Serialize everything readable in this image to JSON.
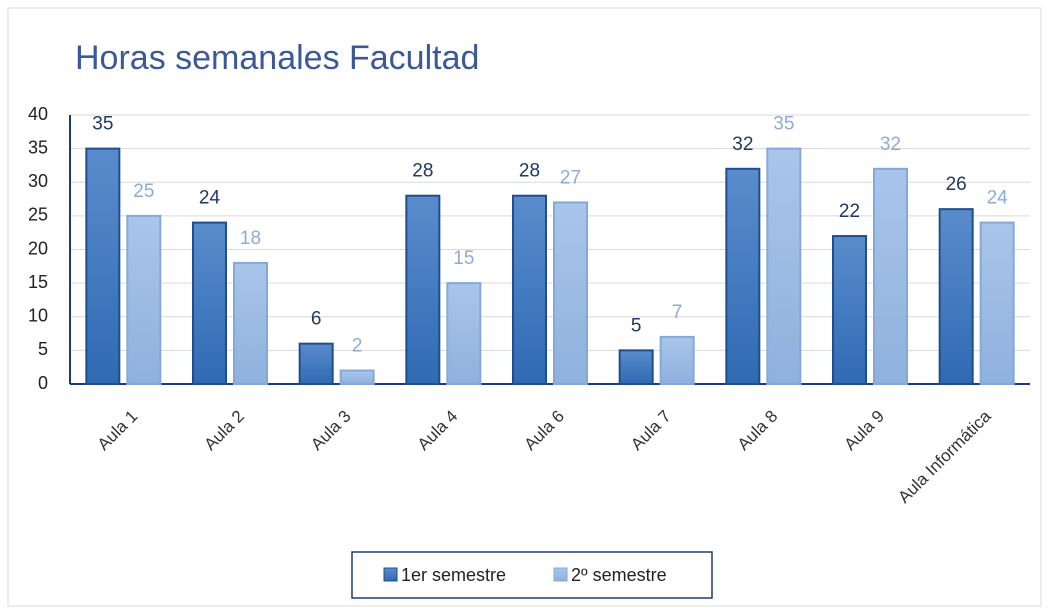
{
  "chart_data": {
    "type": "bar",
    "title": "Horas semanales Facultad",
    "categories": [
      "Aula 1",
      "Aula 2",
      "Aula 3",
      "Aula 4",
      "Aula 6",
      "Aula 7",
      "Aula 8",
      "Aula 9",
      "Aula Informática"
    ],
    "series": [
      {
        "name": "1er semestre",
        "color": "#3b78c0",
        "values": [
          35,
          24,
          6,
          28,
          28,
          5,
          32,
          22,
          26
        ]
      },
      {
        "name": "2º semestre",
        "color": "#9dbde6",
        "values": [
          25,
          18,
          2,
          15,
          27,
          7,
          35,
          32,
          24
        ]
      }
    ],
    "ylim": [
      0,
      40
    ],
    "yticks": [
      0,
      5,
      10,
      15,
      20,
      25,
      30,
      35,
      40
    ],
    "grid": true,
    "legend": "bottom"
  }
}
